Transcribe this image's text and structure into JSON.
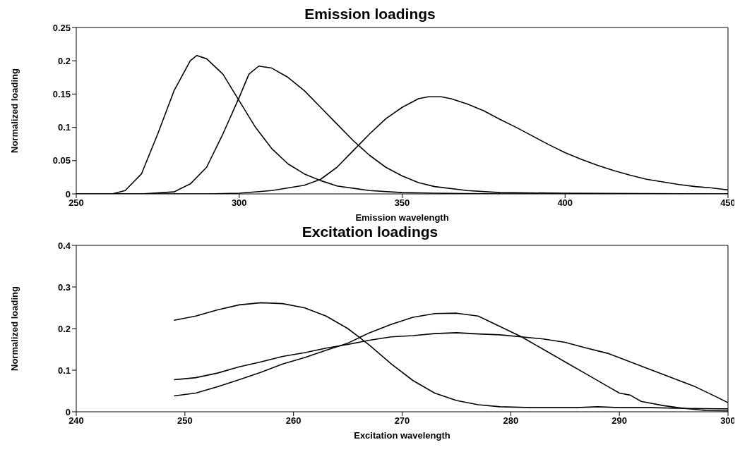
{
  "chart_data": [
    {
      "type": "line",
      "title": "Emission loadings",
      "xlabel": "Emission wavelength",
      "ylabel": "Normalized loading",
      "xlim": [
        250,
        450
      ],
      "xticks": [
        250,
        300,
        350,
        400,
        450
      ],
      "ylim": [
        0,
        0.25
      ],
      "yticks": [
        0,
        0.05,
        0.1,
        0.15,
        0.2,
        0.25
      ],
      "grid": false,
      "marker": "none",
      "line_style": "solid",
      "series": [
        {
          "color": "#000000",
          "x": [
            250,
            261,
            265,
            270,
            275,
            280,
            285,
            287,
            290,
            295,
            300,
            305,
            310,
            315,
            320,
            325,
            330,
            340,
            350,
            360,
            380,
            450
          ],
          "values": [
            0,
            0,
            0.005,
            0.03,
            0.09,
            0.155,
            0.2,
            0.208,
            0.203,
            0.18,
            0.14,
            0.1,
            0.068,
            0.045,
            0.03,
            0.02,
            0.012,
            0.005,
            0.002,
            0.001,
            0,
            0
          ]
        },
        {
          "color": "#000000",
          "x": [
            250,
            270,
            280,
            285,
            290,
            295,
            300,
            303,
            306,
            310,
            315,
            320,
            325,
            330,
            335,
            340,
            345,
            350,
            355,
            360,
            370,
            380,
            400,
            450
          ],
          "values": [
            0,
            0,
            0.003,
            0.015,
            0.04,
            0.09,
            0.145,
            0.18,
            0.192,
            0.189,
            0.175,
            0.155,
            0.13,
            0.105,
            0.08,
            0.058,
            0.04,
            0.027,
            0.017,
            0.011,
            0.005,
            0.002,
            0.001,
            0
          ]
        },
        {
          "color": "#000000",
          "x": [
            250,
            290,
            300,
            310,
            320,
            325,
            330,
            335,
            340,
            345,
            350,
            355,
            358,
            362,
            365,
            370,
            375,
            380,
            385,
            390,
            395,
            400,
            405,
            410,
            415,
            420,
            425,
            430,
            435,
            440,
            445,
            450
          ],
          "values": [
            0,
            0,
            0.001,
            0.005,
            0.013,
            0.022,
            0.04,
            0.065,
            0.09,
            0.113,
            0.13,
            0.143,
            0.146,
            0.146,
            0.143,
            0.135,
            0.125,
            0.112,
            0.1,
            0.087,
            0.074,
            0.062,
            0.052,
            0.043,
            0.035,
            0.028,
            0.022,
            0.018,
            0.014,
            0.011,
            0.009,
            0.006
          ]
        }
      ]
    },
    {
      "type": "line",
      "title": "Excitation loadings",
      "xlabel": "Excitation wavelength",
      "ylabel": "Normalized loading",
      "xlim": [
        240,
        300
      ],
      "xticks": [
        240,
        250,
        260,
        270,
        280,
        290,
        300
      ],
      "ylim": [
        0,
        0.4
      ],
      "yticks": [
        0,
        0.1,
        0.2,
        0.3,
        0.4
      ],
      "grid": false,
      "marker": "none",
      "line_style": "solid",
      "series": [
        {
          "color": "#000000",
          "x": [
            249,
            251,
            253,
            255,
            257,
            259,
            261,
            263,
            265,
            267,
            269,
            271,
            273,
            275,
            277,
            279,
            282,
            286,
            288,
            290,
            293,
            296,
            300
          ],
          "values": [
            0.22,
            0.23,
            0.245,
            0.257,
            0.262,
            0.26,
            0.25,
            0.23,
            0.2,
            0.16,
            0.115,
            0.075,
            0.045,
            0.027,
            0.017,
            0.012,
            0.01,
            0.01,
            0.012,
            0.01,
            0.01,
            0.008,
            0.007
          ]
        },
        {
          "color": "#000000",
          "x": [
            249,
            251,
            253,
            255,
            257,
            259,
            261,
            263,
            265,
            267,
            269,
            271,
            273,
            275,
            277,
            279,
            281,
            283,
            285,
            287,
            289,
            290,
            291,
            292,
            294,
            296,
            298,
            300
          ],
          "values": [
            0.038,
            0.045,
            0.06,
            0.077,
            0.095,
            0.115,
            0.13,
            0.148,
            0.165,
            0.19,
            0.21,
            0.227,
            0.236,
            0.237,
            0.23,
            0.205,
            0.18,
            0.15,
            0.12,
            0.09,
            0.06,
            0.045,
            0.04,
            0.025,
            0.015,
            0.008,
            0.003,
            0.002
          ]
        },
        {
          "color": "#000000",
          "x": [
            249,
            251,
            253,
            255,
            257,
            259,
            261,
            263,
            265,
            267,
            269,
            271,
            273,
            275,
            277,
            279,
            281,
            283,
            285,
            287,
            289,
            291,
            293,
            295,
            297,
            299,
            300
          ],
          "values": [
            0.077,
            0.082,
            0.093,
            0.108,
            0.12,
            0.133,
            0.142,
            0.153,
            0.162,
            0.172,
            0.18,
            0.183,
            0.188,
            0.19,
            0.187,
            0.185,
            0.18,
            0.175,
            0.167,
            0.153,
            0.14,
            0.12,
            0.1,
            0.08,
            0.06,
            0.035,
            0.022
          ]
        }
      ]
    }
  ]
}
